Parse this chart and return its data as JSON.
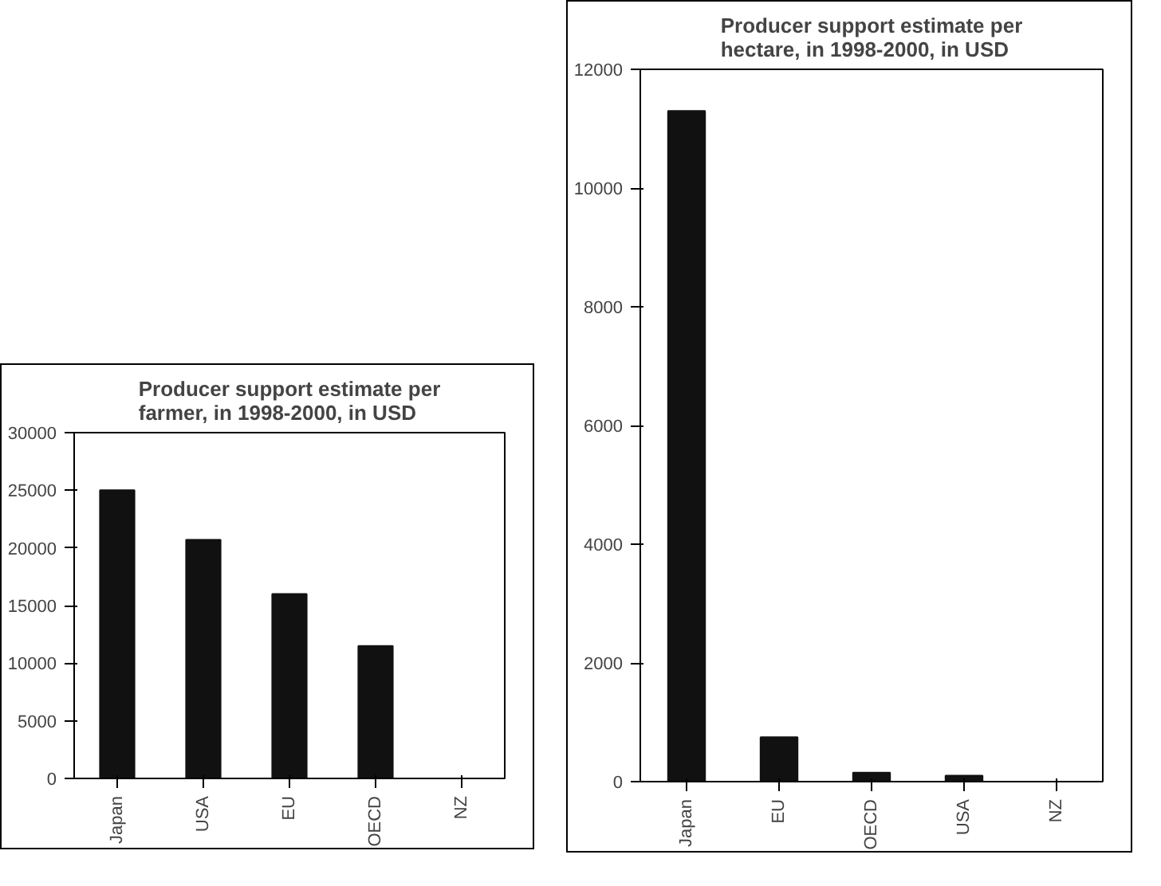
{
  "chart_data": [
    {
      "type": "bar",
      "title": "Producer support estimate per farmer, in 1998-2000, in USD",
      "categories": [
        "Japan",
        "USA",
        "EU",
        "OECD",
        "NZ"
      ],
      "values": [
        25000,
        20700,
        16000,
        11500,
        null
      ],
      "color": "#111111",
      "ylim": [
        0,
        30000
      ],
      "yticks": [
        0,
        5000,
        10000,
        15000,
        20000,
        25000,
        30000
      ],
      "grid": false
    },
    {
      "type": "bar",
      "title": "Producer support estimate per hectare, in 1998-2000, in USD",
      "categories": [
        "Japan",
        "EU",
        "OECD",
        "USA",
        "NZ"
      ],
      "values": [
        11300,
        750,
        150,
        100,
        null
      ],
      "color": "#111111",
      "ylim": [
        0,
        12000
      ],
      "yticks": [
        0,
        2000,
        4000,
        6000,
        8000,
        10000,
        12000
      ],
      "grid": false
    }
  ]
}
